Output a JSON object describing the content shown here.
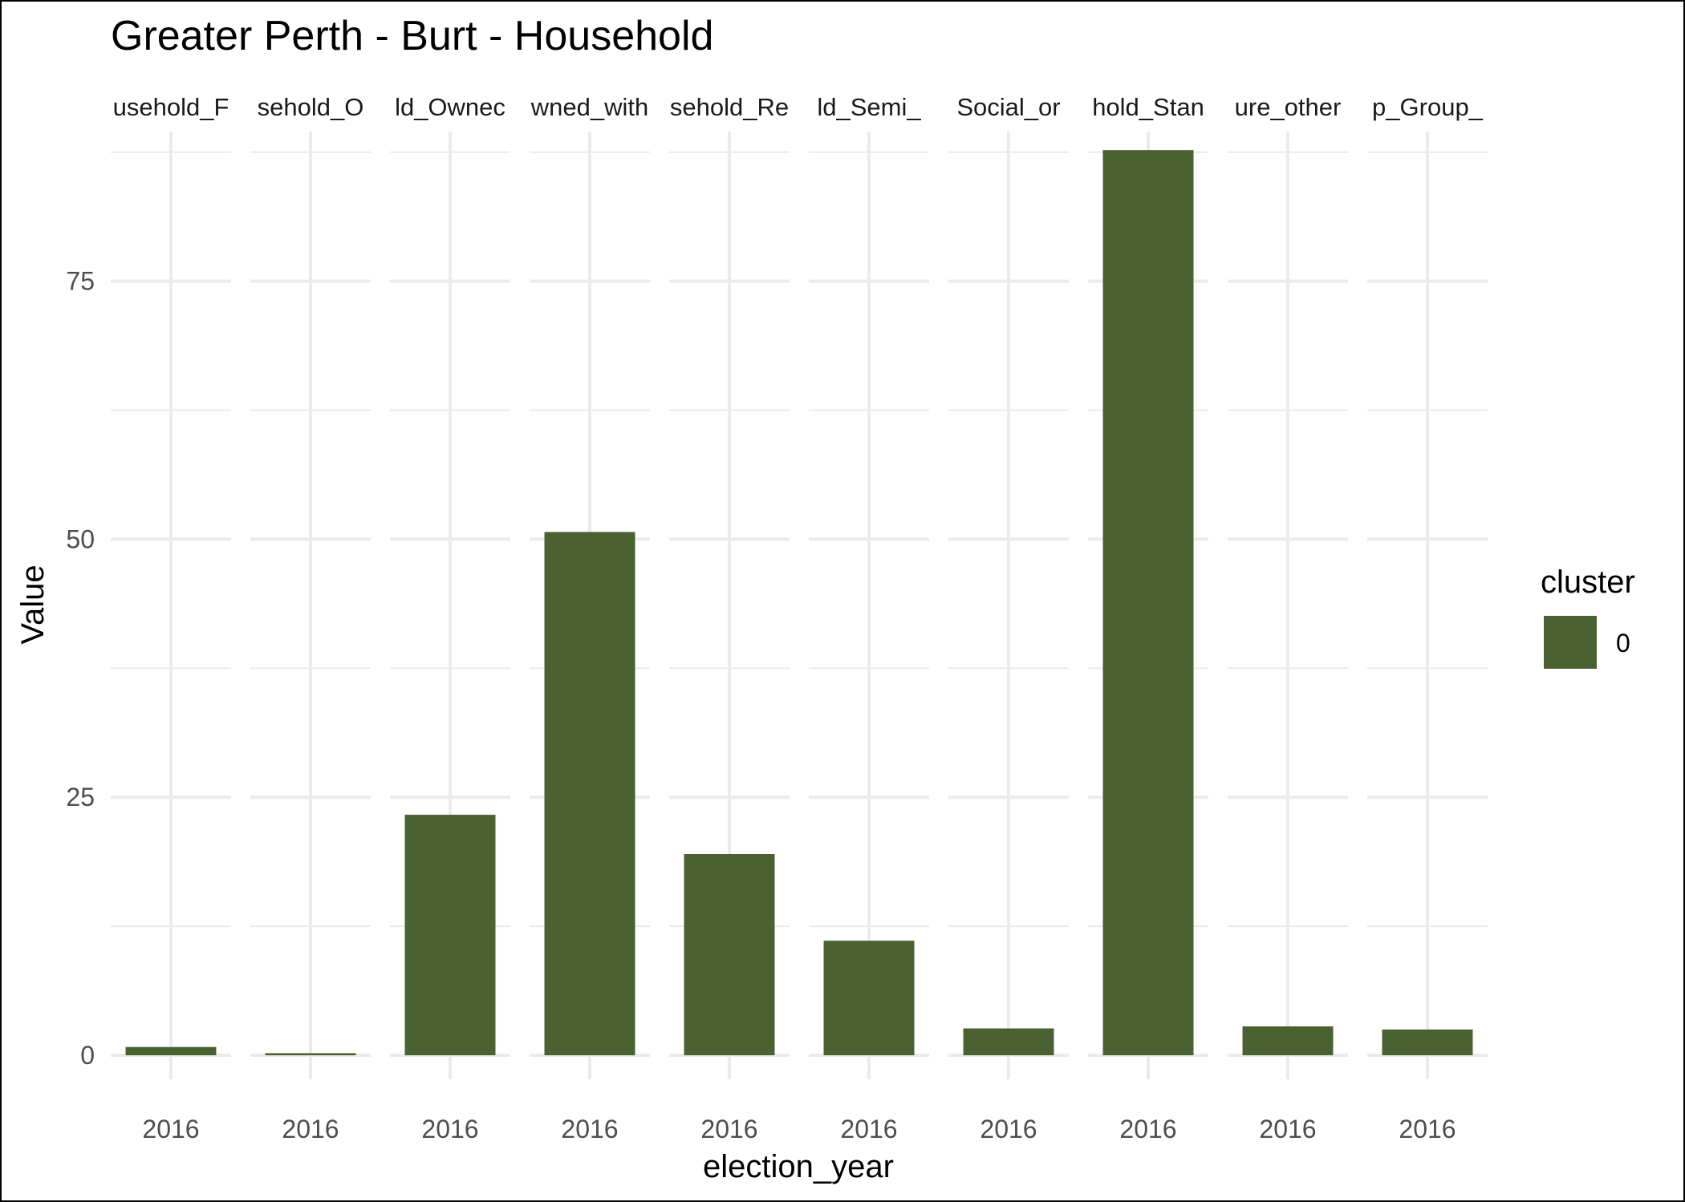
{
  "chart_data": {
    "type": "bar",
    "title": "Greater Perth - Burt - Household",
    "xlabel": "election_year",
    "ylabel": "Value",
    "ylim": [
      0,
      89.5
    ],
    "yticks": [
      0,
      25,
      50,
      75
    ],
    "facets": [
      {
        "strip": "usehold_F",
        "x": "2016",
        "value": 0.8
      },
      {
        "strip": "sehold_O",
        "x": "2016",
        "value": 0.2
      },
      {
        "strip": "ld_Ownec",
        "x": "2016",
        "value": 23.3
      },
      {
        "strip": "wned_with",
        "x": "2016",
        "value": 50.7
      },
      {
        "strip": "sehold_Re",
        "x": "2016",
        "value": 19.5
      },
      {
        "strip": "ld_Semi_",
        "x": "2016",
        "value": 11.1
      },
      {
        "strip": "Social_or",
        "x": "2016",
        "value": 2.6
      },
      {
        "strip": "hold_Stan",
        "x": "2016",
        "value": 87.7
      },
      {
        "strip": "ure_other",
        "x": "2016",
        "value": 2.8
      },
      {
        "strip": "p_Group_",
        "x": "2016",
        "value": 2.5
      }
    ],
    "legend": {
      "title": "cluster",
      "entries": [
        {
          "label": "0",
          "color": "#4a6132"
        }
      ],
      "position": "right"
    },
    "grid": true,
    "colors": {
      "bar": "#4a6132",
      "grid": "#ebebeb"
    }
  }
}
